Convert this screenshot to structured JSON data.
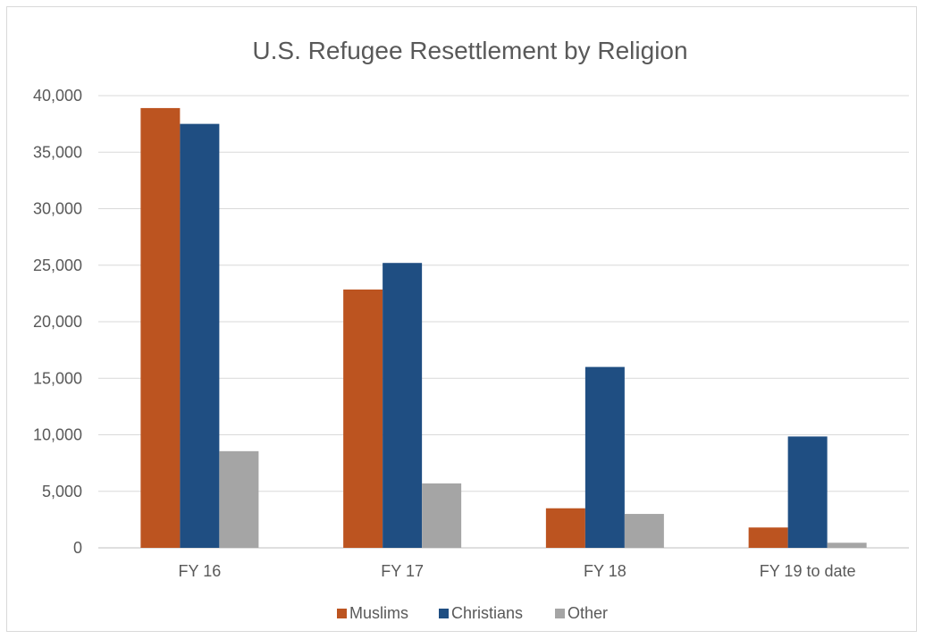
{
  "chart_data": {
    "type": "bar",
    "title": "U.S. Refugee Resettlement by Religion",
    "xlabel": "",
    "ylabel": "",
    "categories": [
      "FY 16",
      "FY 17",
      "FY 18",
      "FY 19 to date"
    ],
    "series": [
      {
        "name": "Muslims",
        "color": "#bc5420",
        "values": [
          38900,
          22850,
          3500,
          1800
        ]
      },
      {
        "name": "Christians",
        "color": "#1f4e82",
        "values": [
          37500,
          25200,
          16000,
          9850
        ]
      },
      {
        "name": "Other",
        "color": "#a5a5a5",
        "values": [
          8550,
          5700,
          3000,
          450
        ]
      }
    ],
    "ylim": [
      0,
      40000
    ],
    "yticks": [
      0,
      5000,
      10000,
      15000,
      20000,
      25000,
      30000,
      35000,
      40000
    ],
    "ytick_labels": [
      "0",
      "5,000",
      "10,000",
      "15,000",
      "20,000",
      "25,000",
      "30,000",
      "35,000",
      "40,000"
    ],
    "grid": true,
    "legend_position": "bottom"
  }
}
